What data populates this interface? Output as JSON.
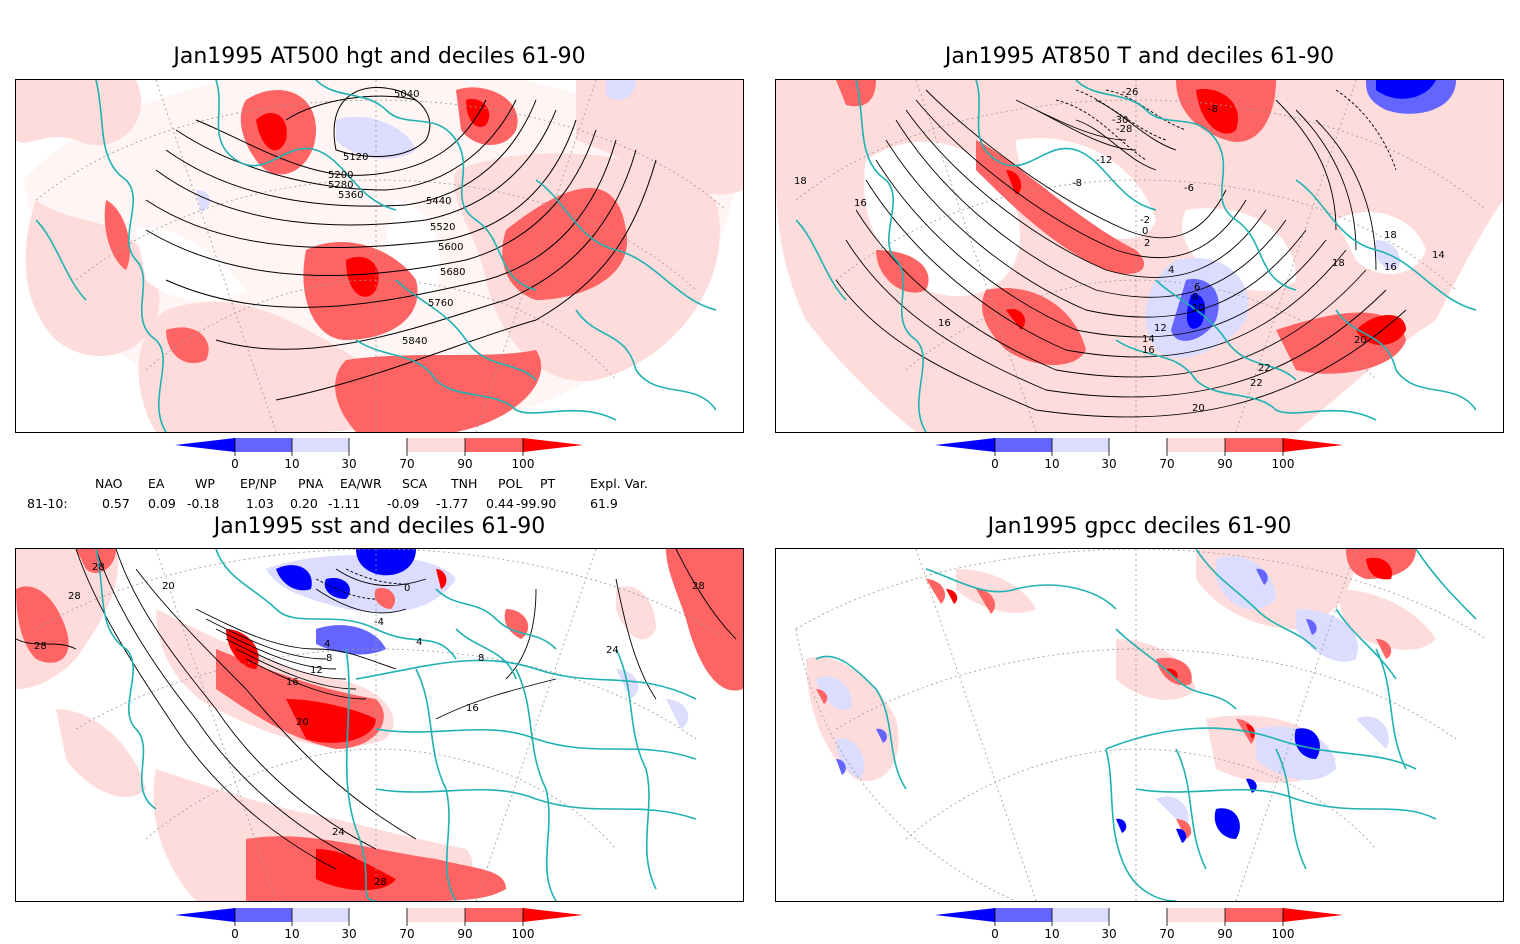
{
  "panels": [
    {
      "id": "p1",
      "title": "Jan1995 AT500 hgt and deciles 61-90",
      "contour_labels": [
        "5040",
        "5120",
        "5200",
        "5280",
        "5360",
        "5440",
        "5520",
        "5600",
        "5680",
        "5760",
        "5840"
      ]
    },
    {
      "id": "p2",
      "title": "Jan1995 AT850 T and deciles 61-90",
      "contour_labels": [
        "-26",
        "-30",
        "-28",
        "-12",
        "-8",
        "-8",
        "-6",
        "-2",
        "0",
        "2",
        "4",
        "6",
        "8",
        "10",
        "12",
        "14",
        "16",
        "18",
        "14",
        "16",
        "18",
        "20",
        "22",
        "22",
        "20",
        "18",
        "16",
        "16",
        "18"
      ]
    },
    {
      "id": "p3",
      "title": "Jan1995 sst and deciles 61-90",
      "contour_labels": [
        "28",
        "28",
        "28",
        "20",
        "0",
        "-4",
        "4",
        "4",
        "8",
        "12",
        "16",
        "20",
        "24",
        "28",
        "16",
        "24",
        "8",
        "28"
      ]
    },
    {
      "id": "p4",
      "title": "Jan1995 gpcc deciles 61-90",
      "contour_labels": []
    }
  ],
  "colorbar": {
    "ticks": [
      "0",
      "10",
      "30",
      "70",
      "90",
      "100"
    ],
    "colors": {
      "below_0": "#0000ff",
      "0_10": "#6464ff",
      "10_30": "#dcdcff",
      "30_70": "#ffffff",
      "70_90": "#ffdcdc",
      "90_100": "#ff6464",
      "above_100": "#ff0000"
    }
  },
  "indices": {
    "row_label": "81-10:",
    "headers": [
      "NAO",
      "EA",
      "WP",
      "EP/NP",
      "PNA",
      "EA/WR",
      "SCA",
      "TNH",
      "POL",
      "PT",
      "Expl. Var."
    ],
    "values": [
      "0.57",
      "0.09",
      "-0.18",
      "1.03",
      "0.20",
      "-1.11",
      "-0.09",
      "-1.77",
      "0.44",
      "-99.90",
      "61.9"
    ]
  },
  "map_colors": {
    "coast": "#20b2b2",
    "contour": "#000000",
    "grid": "#999999"
  }
}
